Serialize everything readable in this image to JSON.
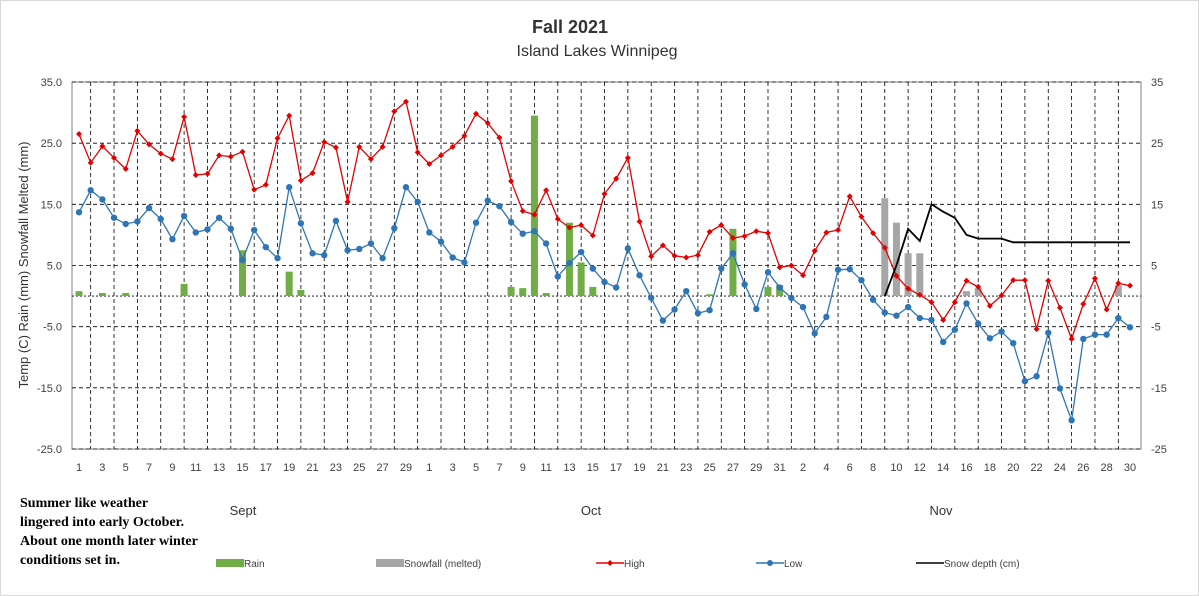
{
  "chart_data": {
    "type": "bar",
    "title": "Fall 2021",
    "subtitle": "Island Lakes Winnipeg",
    "ylabel": "Temp (C) Rain (mm) Snowfall Melted (mm)",
    "ylim": [
      -25,
      35
    ],
    "y_ticks_left": [
      "35.0",
      "25.0",
      "15.0",
      "5.0",
      "-5.0",
      "-15.0",
      "-25.0"
    ],
    "y_ticks_right": [
      "35",
      "25",
      "15",
      "5",
      "-5",
      "-15",
      "-25"
    ],
    "y2lim": [
      -25,
      35
    ],
    "x_tick_labels": [
      "1",
      "3",
      "5",
      "7",
      "9",
      "11",
      "13",
      "15",
      "17",
      "19",
      "21",
      "23",
      "25",
      "27",
      "29",
      "1",
      "3",
      "5",
      "7",
      "9",
      "11",
      "13",
      "15",
      "17",
      "19",
      "21",
      "23",
      "25",
      "27",
      "29",
      "31",
      "2",
      "4",
      "6",
      "8",
      "10",
      "12",
      "14",
      "16",
      "18",
      "20",
      "22",
      "24",
      "26",
      "28",
      "30"
    ],
    "months": [
      "Sept",
      "Oct",
      "Nov"
    ],
    "grid": true,
    "legend_position": "bottom",
    "series": [
      {
        "name": "Rain",
        "kind": "bar",
        "color": "#70ad47",
        "values": [
          0.8,
          0,
          0.5,
          0,
          0.5,
          0,
          0,
          0,
          0,
          2,
          0,
          0,
          0,
          0,
          7.5,
          0,
          0,
          0,
          4,
          1,
          0,
          0,
          0,
          0,
          0,
          0,
          0,
          0,
          0,
          0,
          0,
          0,
          0,
          0,
          0,
          0,
          0,
          1.5,
          1.3,
          29.5,
          0.5,
          0,
          12,
          5.5,
          1.5,
          0,
          0,
          0,
          0,
          0,
          0,
          0,
          0,
          0,
          0.3,
          0,
          11,
          0,
          0,
          1.5,
          1.8,
          0,
          0,
          0,
          0,
          0,
          0,
          0,
          0,
          0,
          0,
          0,
          0,
          0,
          0,
          0,
          0,
          0,
          0,
          0,
          0,
          0,
          0,
          0,
          0,
          0,
          0,
          0,
          0,
          0,
          0
        ]
      },
      {
        "name": "Snowfall (melted)",
        "kind": "bar",
        "color": "#a6a6a6",
        "values": [
          0,
          0,
          0,
          0,
          0,
          0,
          0,
          0,
          0,
          0,
          0,
          0,
          0,
          0,
          0,
          0,
          0,
          0,
          0,
          0,
          0,
          0,
          0,
          0,
          0,
          0,
          0,
          0,
          0,
          0,
          0,
          0,
          0,
          0,
          0,
          0,
          0,
          0,
          0,
          0,
          0,
          0,
          0,
          0,
          0,
          0,
          0,
          0,
          0,
          0,
          0,
          0,
          0,
          0,
          0,
          0,
          0,
          0,
          0,
          0,
          0,
          0,
          0,
          0,
          0,
          0,
          0,
          0,
          0,
          16,
          12,
          7,
          7,
          0,
          0,
          0,
          0.8,
          1.3,
          0,
          0,
          0,
          0,
          0,
          0,
          0,
          0,
          0,
          0,
          0,
          1.8
        ]
      },
      {
        "name": "High",
        "kind": "line",
        "color": "#e30000",
        "values": [
          26.5,
          21.8,
          24.5,
          22.6,
          20.8,
          27,
          24.8,
          23.3,
          22.4,
          29.3,
          19.8,
          20,
          23,
          22.8,
          23.6,
          17.4,
          18.2,
          25.8,
          29.5,
          18.9,
          20.1,
          25.2,
          24.3,
          15.4,
          24.4,
          22.4,
          24.4,
          30.2,
          31.8,
          23.5,
          21.6,
          23,
          24.4,
          26.2,
          29.8,
          28.3,
          25.9,
          18.8,
          13.9,
          13.3,
          17.3,
          12.6,
          11.2,
          11.6,
          9.9,
          16.7,
          19.2,
          22.6,
          12.2,
          6.5,
          8.3,
          6.6,
          6.3,
          6.7,
          10.5,
          11.6,
          9.5,
          9.8,
          10.6,
          10.3,
          4.7,
          5,
          3.4,
          7.4,
          10.4,
          10.8,
          16.3,
          13,
          10.3,
          7.9,
          3.3,
          1.2,
          0.2,
          -1,
          -3.9,
          -1,
          2.5,
          1.5,
          -1.6,
          0.1,
          2.6,
          2.6,
          -5.4,
          2.5,
          -1.9,
          -7,
          -1.3,
          2.9,
          -2.2,
          2.1,
          1.7
        ]
      },
      {
        "name": "Low",
        "kind": "line",
        "color": "#2e75b6",
        "values": [
          13.7,
          17.3,
          15.8,
          12.8,
          11.8,
          12.2,
          14.4,
          12.6,
          9.3,
          13.1,
          10.4,
          10.9,
          12.8,
          11,
          5.9,
          10.8,
          8,
          6.2,
          17.8,
          11.9,
          7,
          6.7,
          12.3,
          7.5,
          7.7,
          8.6,
          6.2,
          11.1,
          17.8,
          15.4,
          10.4,
          8.9,
          6.3,
          5.5,
          12,
          15.6,
          14.7,
          12.1,
          10.2,
          10.6,
          8.6,
          3.2,
          5.4,
          7.2,
          4.5,
          2.3,
          1.4,
          7.8,
          3.4,
          -0.3,
          -4,
          -2.2,
          0.8,
          -2.8,
          -2.3,
          4.5,
          7,
          1.9,
          -2.1,
          3.9,
          1.4,
          -0.3,
          -1.8,
          -6.1,
          -3.4,
          4.3,
          4.4,
          2.6,
          -0.6,
          -2.7,
          -3.2,
          -1.8,
          -3.6,
          -3.9,
          -7.5,
          -5.5,
          -1.2,
          -4.5,
          -6.9,
          -5.8,
          -7.7,
          -13.9,
          -13.1,
          -6,
          -15.1,
          -20.3,
          -7,
          -6.3,
          -6.3,
          -3.6,
          -5.1
        ]
      },
      {
        "name": "Snow depth (cm)",
        "kind": "line",
        "color": "#000000",
        "values": [
          null,
          null,
          null,
          null,
          null,
          null,
          null,
          null,
          null,
          null,
          null,
          null,
          null,
          null,
          null,
          null,
          null,
          null,
          null,
          null,
          null,
          null,
          null,
          null,
          null,
          null,
          null,
          null,
          null,
          null,
          null,
          null,
          null,
          null,
          null,
          null,
          null,
          null,
          null,
          null,
          null,
          null,
          null,
          null,
          null,
          null,
          null,
          null,
          null,
          null,
          null,
          null,
          null,
          null,
          null,
          null,
          null,
          null,
          null,
          null,
          null,
          null,
          null,
          null,
          null,
          null,
          null,
          null,
          null,
          0,
          5,
          11,
          9,
          15,
          13.8,
          12.8,
          10,
          9.4,
          9.4,
          9.4,
          8.8,
          8.8,
          8.8,
          8.8,
          8.8,
          8.8,
          8.8,
          8.8,
          8.8,
          8.8,
          8.8
        ]
      }
    ]
  },
  "note": {
    "lines": [
      "Summer like weather",
      "lingered into early October.",
      "About one month later winter",
      "conditions set in."
    ]
  }
}
